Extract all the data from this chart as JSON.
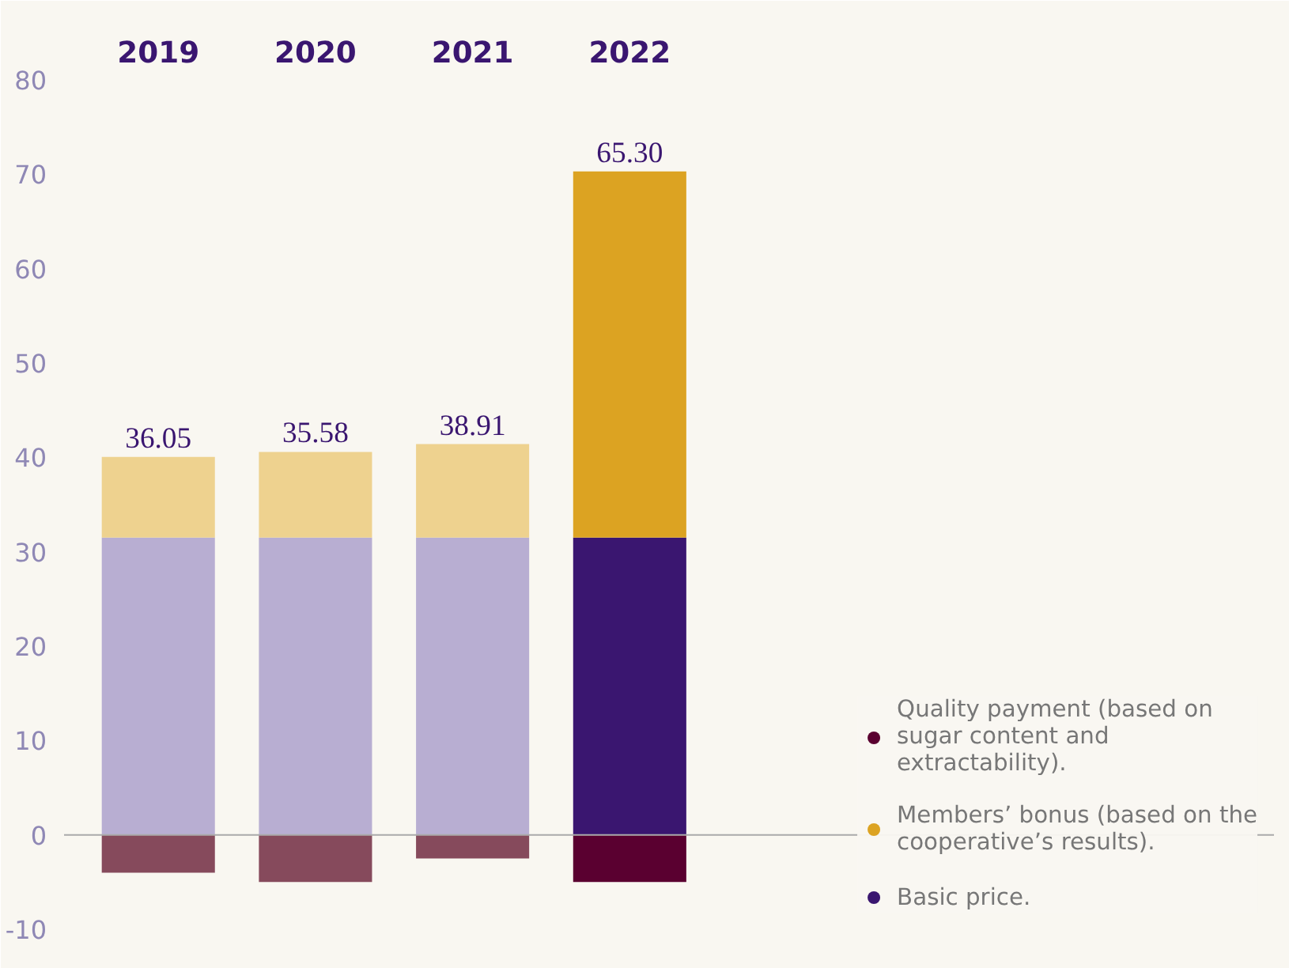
{
  "chart_data": {
    "type": "bar",
    "stacked": true,
    "categories": [
      "2019",
      "2020",
      "2021",
      "2022"
    ],
    "series": [
      {
        "name": "Basic price.",
        "color": "#3a1670",
        "colors": [
          "#b8aed2",
          "#b8aed2",
          "#b8aed2",
          "#3a1670"
        ],
        "values": [
          31.5,
          31.5,
          31.5,
          31.5
        ]
      },
      {
        "name": "Members’ bonus (based on the cooperative’s results).",
        "color": "#dca322",
        "colors": [
          "#eed28f",
          "#eed28f",
          "#eed28f",
          "#dca322"
        ],
        "values": [
          8.55,
          9.08,
          9.91,
          38.8
        ]
      },
      {
        "name": "Quality payment (based on sugar content and extractability).",
        "color": "#5a0030",
        "colors": [
          "#864a5c",
          "#864a5c",
          "#864a5c",
          "#5a0030"
        ],
        "values": [
          -4,
          -5,
          -2.5,
          -5
        ]
      }
    ],
    "totals": [
      "36.05",
      "35.58",
      "38.91",
      "65.30"
    ],
    "ylim": [
      -10,
      80
    ],
    "yticks": [
      -10,
      0,
      10,
      20,
      30,
      40,
      50,
      60,
      70,
      80
    ],
    "ref_lines": [
      {
        "axis": "y",
        "value": 0,
        "color": "#aaaaaa"
      }
    ],
    "legend": "right",
    "grid": false
  }
}
